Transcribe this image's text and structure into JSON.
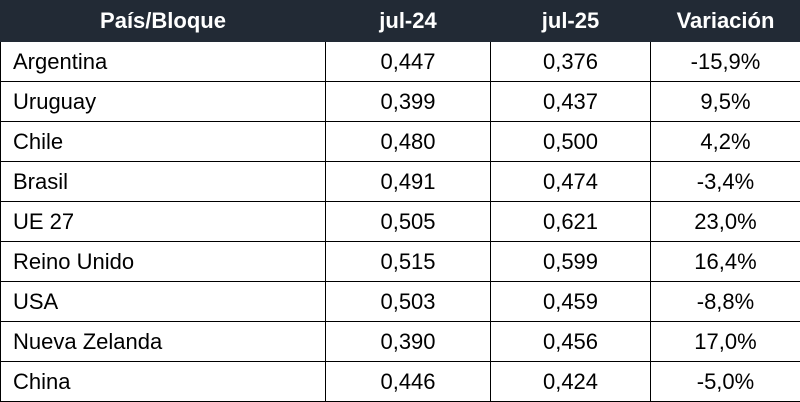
{
  "table": {
    "header": [
      "País/Bloque",
      "jul-24",
      "jul-25",
      "Variación"
    ],
    "rows": [
      [
        "Argentina",
        "0,447",
        "0,376",
        "-15,9%"
      ],
      [
        "Uruguay",
        "0,399",
        "0,437",
        "9,5%"
      ],
      [
        "Chile",
        "0,480",
        "0,500",
        "4,2%"
      ],
      [
        "Brasil",
        "0,491",
        "0,474",
        "-3,4%"
      ],
      [
        "UE 27",
        "0,505",
        "0,621",
        "23,0%"
      ],
      [
        "Reino Unido",
        "0,515",
        "0,599",
        "16,4%"
      ],
      [
        "USA",
        "0,503",
        "0,459",
        "-8,8%"
      ],
      [
        "Nueva Zelanda",
        "0,390",
        "0,456",
        "17,0%"
      ],
      [
        "China",
        "0,446",
        "0,424",
        "-5,0%"
      ]
    ]
  }
}
